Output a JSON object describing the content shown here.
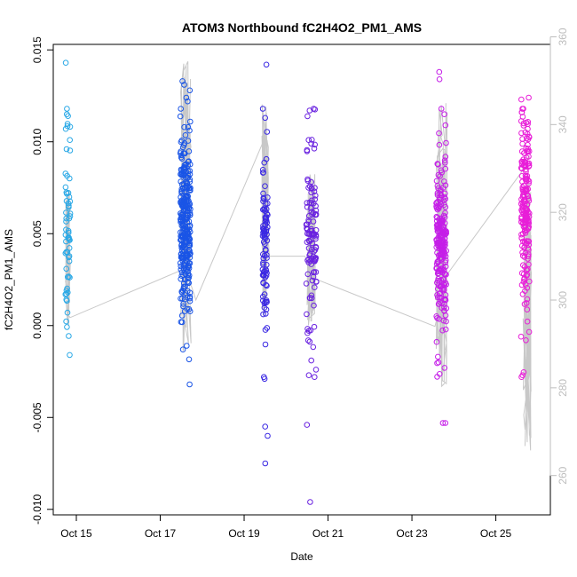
{
  "chart_data": {
    "type": "scatter",
    "title": "ATOM3 Northbound fC2H4O2_PM1_AMS",
    "xlabel": "Date",
    "ylabel": "fC2H4O2_PM1_AMS",
    "ylabel_right": "",
    "x_tick_labels": [
      "Oct 15",
      "Oct 17",
      "Oct 19",
      "Oct 21",
      "Oct 23",
      "Oct 25"
    ],
    "x_tick_days": [
      15,
      17,
      19,
      21,
      23,
      25
    ],
    "xlim": [
      14.45,
      26.3
    ],
    "ylim": [
      -0.0103,
      0.0153
    ],
    "y_ticks": [
      -0.01,
      -0.005,
      0.0,
      0.005,
      0.01,
      0.015
    ],
    "y_tick_labels": [
      "-0.010",
      "-0.005",
      "0.000",
      "0.005",
      "0.010",
      "0.015"
    ],
    "right_axis": {
      "ticks": [
        260,
        280,
        300,
        320,
        340,
        360
      ],
      "tick_labels": [
        "260",
        "280",
        "300",
        "320",
        "340",
        "360"
      ],
      "color": "#bdbdbd"
    },
    "clusters": [
      {
        "day": 14.8,
        "spread": 0.06,
        "color": "#29a8e6",
        "n": 55,
        "center": 0.0052,
        "sd": 0.0025,
        "extremes": [
          0.0143,
          0.0115,
          0.0114,
          0.0107,
          0.0101,
          0.0096,
          -0.0016,
          0.0017
        ]
      },
      {
        "day": 17.6,
        "spread": 0.12,
        "color": "#1a55e6",
        "n": 300,
        "center": 0.0055,
        "sd": 0.0022,
        "extremes": [
          0.0133,
          0.0131,
          0.0128,
          0.0124,
          0.0122,
          0.0111,
          0.0108,
          -0.0011,
          -0.0013,
          -0.0032
        ]
      },
      {
        "day": 19.5,
        "spread": 0.06,
        "color": "#3a28e3",
        "n": 90,
        "center": 0.0043,
        "sd": 0.0025,
        "extremes": [
          0.0142,
          0.0118,
          0.0113,
          -0.0028,
          -0.0029,
          -0.0055,
          -0.006,
          -0.0075
        ]
      },
      {
        "day": 20.6,
        "spread": 0.12,
        "color": "#6a22e0",
        "n": 110,
        "center": 0.0045,
        "sd": 0.0027,
        "extremes": [
          0.0117,
          0.0101,
          0.0099,
          -0.0019,
          -0.0024,
          -0.0027,
          -0.0028,
          -0.0054,
          -0.0096
        ]
      },
      {
        "day": 23.7,
        "spread": 0.12,
        "color": "#c51ee8",
        "n": 230,
        "center": 0.0045,
        "sd": 0.0025,
        "extremes": [
          0.0138,
          0.0134,
          0.0118,
          0.0115,
          0.0109,
          -0.002,
          -0.0023,
          -0.0053,
          -0.0053
        ]
      },
      {
        "day": 25.7,
        "spread": 0.1,
        "color": "#e81ed8",
        "n": 190,
        "center": 0.0065,
        "sd": 0.0028,
        "extremes": [
          0.0124,
          0.0123,
          0.0116,
          0.011,
          0.0107,
          -0.0006,
          -0.0008,
          -0.0027,
          -0.0028
        ]
      }
    ],
    "altitude_line": {
      "color": "#c8c8c8",
      "points": [
        [
          14.75,
          300
        ],
        [
          14.78,
          297
        ],
        [
          14.85,
          296
        ],
        [
          17.55,
          307
        ],
        [
          17.75,
          303
        ],
        [
          17.85,
          300
        ],
        [
          19.45,
          336
        ],
        [
          19.6,
          310
        ],
        [
          20.45,
          310
        ],
        [
          20.65,
          305
        ],
        [
          23.55,
          294
        ],
        [
          23.85,
          306
        ],
        [
          25.6,
          329
        ],
        [
          25.8,
          333
        ]
      ],
      "clusters": [
        {
          "day": 14.8,
          "spread": 0.06,
          "low": 294,
          "high": 325
        },
        {
          "day": 17.6,
          "spread": 0.14,
          "low": 288,
          "high": 355
        },
        {
          "day": 19.5,
          "spread": 0.08,
          "low": 296,
          "high": 345
        },
        {
          "day": 20.6,
          "spread": 0.1,
          "low": 294,
          "high": 330
        },
        {
          "day": 23.7,
          "spread": 0.14,
          "low": 280,
          "high": 345
        },
        {
          "day": 25.75,
          "spread": 0.1,
          "low": 265,
          "high": 330
        }
      ]
    }
  }
}
